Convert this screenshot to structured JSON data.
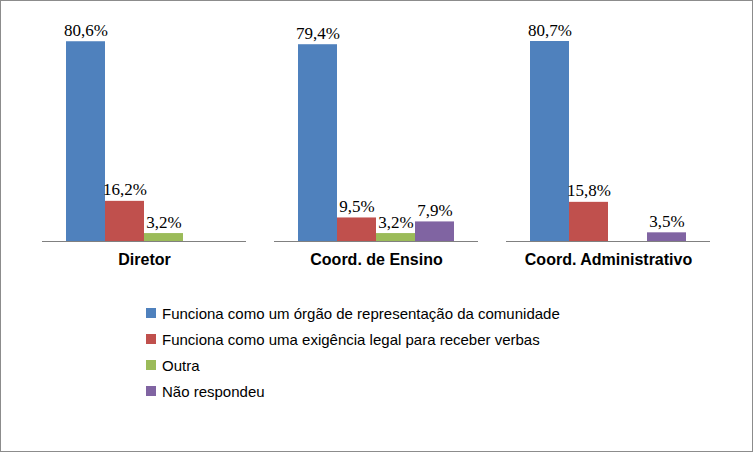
{
  "chart_data": {
    "type": "bar",
    "categories": [
      "Diretor",
      "Coord. de Ensino",
      "Coord. Administrativo"
    ],
    "series": [
      {
        "name": "Funciona como um órgão de representação da comunidade",
        "color": "#4f81bd",
        "values": [
          80.6,
          79.4,
          80.7
        ],
        "value_labels": [
          "80,6%",
          "79,4%",
          "80,7%"
        ]
      },
      {
        "name": "Funciona como uma exigência legal para receber verbas",
        "color": "#c0504d",
        "values": [
          16.2,
          9.5,
          15.8
        ],
        "value_labels": [
          "16,2%",
          "9,5%",
          "15,8%"
        ]
      },
      {
        "name": "Outra",
        "color": "#9bbb59",
        "values": [
          3.2,
          3.2,
          null
        ],
        "value_labels": [
          "3,2%",
          "3,2%",
          null
        ]
      },
      {
        "name": "Não respondeu",
        "color": "#8064a2",
        "values": [
          null,
          7.9,
          3.5
        ],
        "value_labels": [
          null,
          "7,9%",
          "3,5%"
        ]
      }
    ],
    "data_labels": true,
    "tick_labels": "x",
    "legend": "bottom"
  }
}
